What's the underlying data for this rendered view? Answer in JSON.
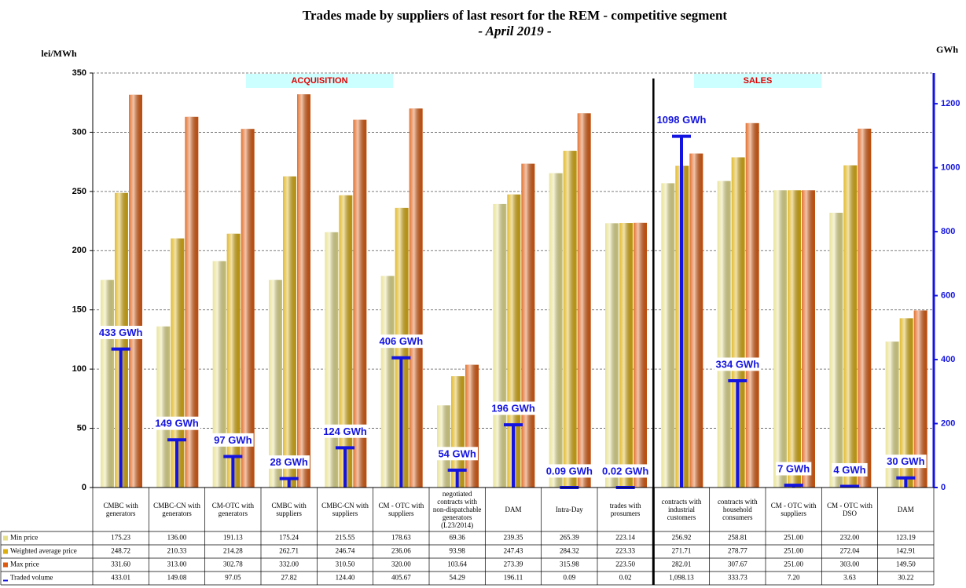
{
  "chart_data": {
    "type": "bar",
    "title": "Trades made by suppliers of last resort for the REM -  competitive segment",
    "subtitle": "- April 2019 -",
    "y_label": "lei/MWh",
    "y2_label": "GWh",
    "annotations": [
      "ACQUISITION",
      "SALES"
    ],
    "categories": [
      "CMBC with generators",
      "CMBC-CN with generators",
      "CM-OTC with generators",
      "CMBC with suppliers",
      "CMBC-CN with suppliers",
      "CM - OTC with suppliers",
      "negotiated contracts with non-dispatchable generators (L23/2014)",
      "DAM",
      "Intra-Day",
      "trades with prosumers",
      "contracts with industrial customers",
      "contracts with household consumers",
      "CM - OTC with suppliers",
      "CM - OTC with DSO",
      "DAM"
    ],
    "series": [
      {
        "name": "Min price",
        "color": "#e6df8a",
        "values": [
          175.23,
          136.0,
          191.13,
          175.24,
          215.55,
          178.63,
          69.36,
          239.35,
          265.39,
          223.14,
          256.92,
          258.81,
          251.0,
          232.0,
          123.19
        ],
        "value_labels": [
          "175.23",
          "136.00",
          "191.13",
          "175.24",
          "215.55",
          "178.63",
          "69.36",
          "239.35",
          "265.39",
          "223.14",
          "256.92",
          "258.81",
          "251.00",
          "232.00",
          "123.19"
        ]
      },
      {
        "name": "Weighted average price",
        "color": "#dcae0c",
        "values": [
          248.72,
          210.33,
          214.28,
          262.71,
          246.74,
          236.06,
          93.98,
          247.43,
          284.32,
          223.33,
          271.71,
          278.77,
          251.0,
          272.04,
          142.91
        ],
        "value_labels": [
          "248.72",
          "210.33",
          "214.28",
          "262.71",
          "246.74",
          "236.06",
          "93.98",
          "247.43",
          "284.32",
          "223.33",
          "271.71",
          "278.77",
          "251.00",
          "272.04",
          "142.91"
        ]
      },
      {
        "name": "Max price",
        "color": "#dd5a0e",
        "values": [
          331.6,
          313.0,
          302.78,
          332.0,
          310.5,
          320.0,
          103.64,
          273.39,
          315.98,
          223.5,
          282.01,
          307.67,
          251.0,
          303.0,
          149.5
        ],
        "value_labels": [
          "331.60",
          "313.00",
          "302.78",
          "332.00",
          "310.50",
          "320.00",
          "103.64",
          "273.39",
          "315.98",
          "223.50",
          "282.01",
          "307.67",
          "251.00",
          "303.00",
          "149.50"
        ]
      },
      {
        "name": "Traded volume",
        "color": "#1414e0",
        "axis": "y2",
        "values": [
          433.01,
          149.08,
          97.05,
          27.82,
          124.4,
          405.67,
          54.29,
          196.11,
          0.09,
          0.02,
          1098.13,
          333.73,
          7.2,
          3.63,
          30.22
        ],
        "value_labels": [
          "433 GWh",
          "149 GWh",
          "97 GWh",
          "28 GWh",
          "124 GWh",
          "406 GWh",
          "54 GWh",
          "196 GWh",
          "0.09 GWh",
          "0.02 GWh",
          "1098 GWh",
          "334 GWh",
          "7 GWh",
          "4 GWh",
          "30 GWh"
        ],
        "table_labels": [
          "433.01",
          "149.08",
          "97.05",
          "27.82",
          "124.40",
          "405.67",
          "54.29",
          "196.11",
          "0.09",
          "0.02",
          "1,098.13",
          "333.73",
          "7.20",
          "3.63",
          "30.22"
        ]
      }
    ],
    "ylim": [
      0,
      350
    ],
    "yticks": [
      0,
      50,
      100,
      150,
      200,
      250,
      300,
      350
    ],
    "y2lim": [
      0,
      1296
    ],
    "y2ticks": [
      0,
      200,
      400,
      600,
      800,
      1000,
      1200
    ],
    "grid": true
  }
}
